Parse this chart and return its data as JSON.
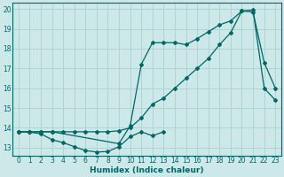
{
  "xlabel": "Humidex (Indice chaleur)",
  "bg_color": "#cce8e8",
  "grid_color": "#b0d4d4",
  "line_color": "#006666",
  "xlim": [
    -0.5,
    23.5
  ],
  "ylim": [
    12.6,
    20.3
  ],
  "yticks": [
    13,
    14,
    15,
    16,
    17,
    18,
    19,
    20
  ],
  "xticks": [
    0,
    1,
    2,
    3,
    4,
    5,
    6,
    7,
    8,
    9,
    10,
    11,
    12,
    13,
    14,
    15,
    16,
    17,
    18,
    19,
    20,
    21,
    22,
    23
  ],
  "line1_x": [
    0,
    1,
    2,
    3,
    4,
    5,
    6,
    7,
    8,
    9,
    10,
    11,
    12,
    13,
    14,
    15,
    16,
    17,
    18,
    19,
    20,
    21,
    22,
    23
  ],
  "line1_y": [
    13.8,
    13.8,
    13.8,
    13.8,
    13.8,
    13.8,
    13.8,
    13.8,
    13.8,
    13.85,
    14.0,
    14.5,
    15.2,
    15.5,
    16.0,
    16.5,
    17.0,
    17.5,
    18.2,
    18.8,
    19.9,
    19.95,
    16.0,
    15.4
  ],
  "line2_x": [
    0,
    1,
    2,
    3,
    9,
    10,
    11,
    12,
    13,
    14,
    15,
    16,
    17,
    18,
    19,
    20,
    21,
    22,
    23
  ],
  "line2_y": [
    13.8,
    13.8,
    13.8,
    13.8,
    13.2,
    14.1,
    17.2,
    18.3,
    18.3,
    18.3,
    18.2,
    18.5,
    18.85,
    19.2,
    19.4,
    19.9,
    19.85,
    17.3,
    16.0
  ],
  "line3_x": [
    0,
    1,
    2,
    3,
    4,
    5,
    6,
    7,
    8,
    9,
    10,
    11,
    12,
    13
  ],
  "line3_y": [
    13.8,
    13.78,
    13.7,
    13.4,
    13.25,
    13.05,
    12.85,
    12.78,
    12.8,
    13.05,
    13.55,
    13.8,
    13.6,
    13.8
  ]
}
